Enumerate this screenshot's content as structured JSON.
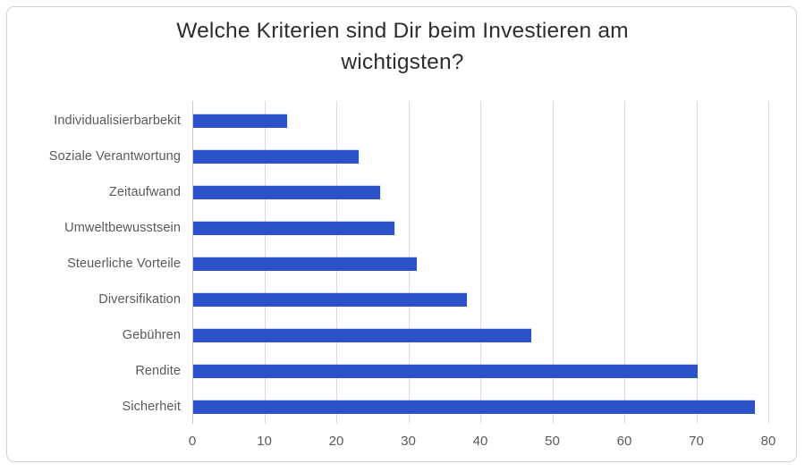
{
  "chart_data": {
    "type": "bar",
    "orientation": "horizontal",
    "title": "Welche Kriterien sind Dir beim Investieren am wichtigsten?",
    "title_lines": [
      "Welche Kriterien sind Dir beim Investieren am",
      "wichtigsten?"
    ],
    "categories": [
      "Individualisierbarbekit",
      "Soziale Verantwortung",
      "Zeitaufwand",
      "Umweltbewusstsein",
      "Steuerliche Vorteile",
      "Diversifikation",
      "Gebühren",
      "Rendite",
      "Sicherheit"
    ],
    "values": [
      13,
      23,
      26,
      28,
      31,
      38,
      47,
      70,
      78
    ],
    "xlim": [
      0,
      80
    ],
    "x_ticks": [
      0,
      10,
      20,
      30,
      40,
      50,
      60,
      70,
      80
    ],
    "grid": "vertical",
    "legend": "none",
    "data_labels": "none",
    "colors": {
      "bar": "#2b52c9",
      "gridline": "#d9d9d9",
      "axis_line": "#c9c9c9",
      "label": "#595959",
      "title": "#2e2e2e",
      "card_border": "#d2d2d2",
      "background": "#ffffff"
    }
  }
}
